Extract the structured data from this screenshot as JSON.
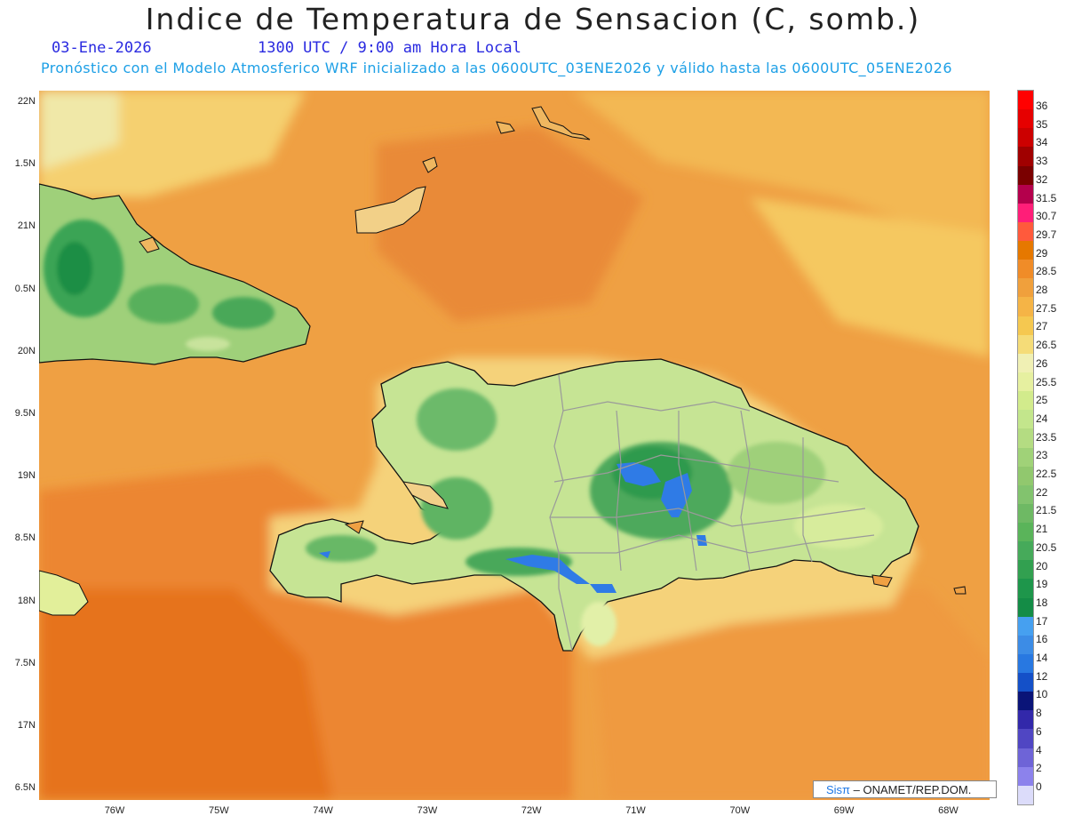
{
  "title": "Indice de Temperatura de Sensacion (C, somb.)",
  "date": "03-Ene-2026",
  "time_line": "1300 UTC / 9:00 am Hora Local",
  "model_line": "Pronóstico con el Modelo Atmosferico WRF inicializado a las 0600UTC_03ENE2026 y válido hasta las  0600UTC_05ENE2026",
  "credit": {
    "logo_text": "Sisπ",
    "text": " – ONAMET/REP.DOM."
  },
  "lat_labels": [
    "22N",
    "1.5N",
    "21N",
    "0.5N",
    "20N",
    "9.5N",
    "19N",
    "8.5N",
    "18N",
    "7.5N",
    "17N",
    "6.5N"
  ],
  "lon_labels": [
    "76W",
    "75W",
    "74W",
    "73W",
    "72W",
    "71W",
    "70W",
    "69W",
    "68W"
  ],
  "colorbar": {
    "labels": [
      "36",
      "35",
      "34",
      "33",
      "32",
      "31.5",
      "30.7",
      "29.7",
      "29",
      "28.5",
      "28",
      "27.5",
      "27",
      "26.5",
      "26",
      "25.5",
      "25",
      "24",
      "23.5",
      "23",
      "22.5",
      "22",
      "21.5",
      "21",
      "20.5",
      "20",
      "19",
      "18",
      "17",
      "16",
      "14",
      "12",
      "10",
      "8",
      "6",
      "4",
      "2",
      "0"
    ],
    "colors": [
      "#ff0000",
      "#e60000",
      "#cc0000",
      "#a00000",
      "#7a0000",
      "#b4004c",
      "#ff1e78",
      "#ff5a3c",
      "#e67800",
      "#f08c28",
      "#f0a03c",
      "#f5b446",
      "#f5c850",
      "#f5dc78",
      "#f0f0b4",
      "#e6f0a0",
      "#d2eb8c",
      "#c3e68c",
      "#b4dc82",
      "#a0d278",
      "#91c86e",
      "#82c36e",
      "#6eb964",
      "#5ab45a",
      "#46aa5a",
      "#32a050",
      "#1e964b",
      "#148c46",
      "#46a0f0",
      "#3c8ce6",
      "#2878e1",
      "#1450c8",
      "#0a1478",
      "#3228aa",
      "#5046c3",
      "#6e64d7",
      "#8c82ec",
      "#dcdcfa"
    ]
  },
  "legend_colors": {
    "ocean_deep": "#e67414",
    "ocean": "#ef8f36",
    "ocean_light": "#f3a640",
    "land_low": "#d8ec9a",
    "land_mid": "#86c472",
    "land_high": "#2e9a4e",
    "cold": "#2f7be6"
  }
}
